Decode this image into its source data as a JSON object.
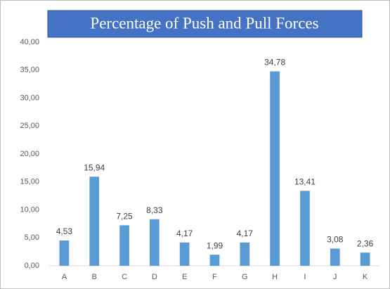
{
  "chart_data": {
    "type": "bar",
    "title": "Percentage of Push and Pull Forces",
    "categories": [
      "A",
      "B",
      "C",
      "D",
      "E",
      "F",
      "G",
      "H",
      "I",
      "J",
      "K"
    ],
    "values": [
      4.53,
      15.94,
      7.25,
      8.33,
      4.17,
      1.99,
      4.17,
      34.78,
      13.41,
      3.08,
      2.36
    ],
    "value_labels": [
      "4,53",
      "15,94",
      "7,25",
      "8,33",
      "4,17",
      "1,99",
      "4,17",
      "34,78",
      "13,41",
      "3,08",
      "2,36"
    ],
    "color": "#5b9bd5",
    "ylim": [
      0,
      40
    ],
    "yticks": [
      {
        "value": 0,
        "label": "0,00"
      },
      {
        "value": 5,
        "label": "5,00"
      },
      {
        "value": 10,
        "label": "10,00"
      },
      {
        "value": 15,
        "label": "15,00"
      },
      {
        "value": 20,
        "label": "20,00"
      },
      {
        "value": 25,
        "label": "25,00"
      },
      {
        "value": 30,
        "label": "30,00"
      },
      {
        "value": 35,
        "label": "35,00"
      },
      {
        "value": 40,
        "label": "40,00"
      }
    ],
    "grid": false
  }
}
